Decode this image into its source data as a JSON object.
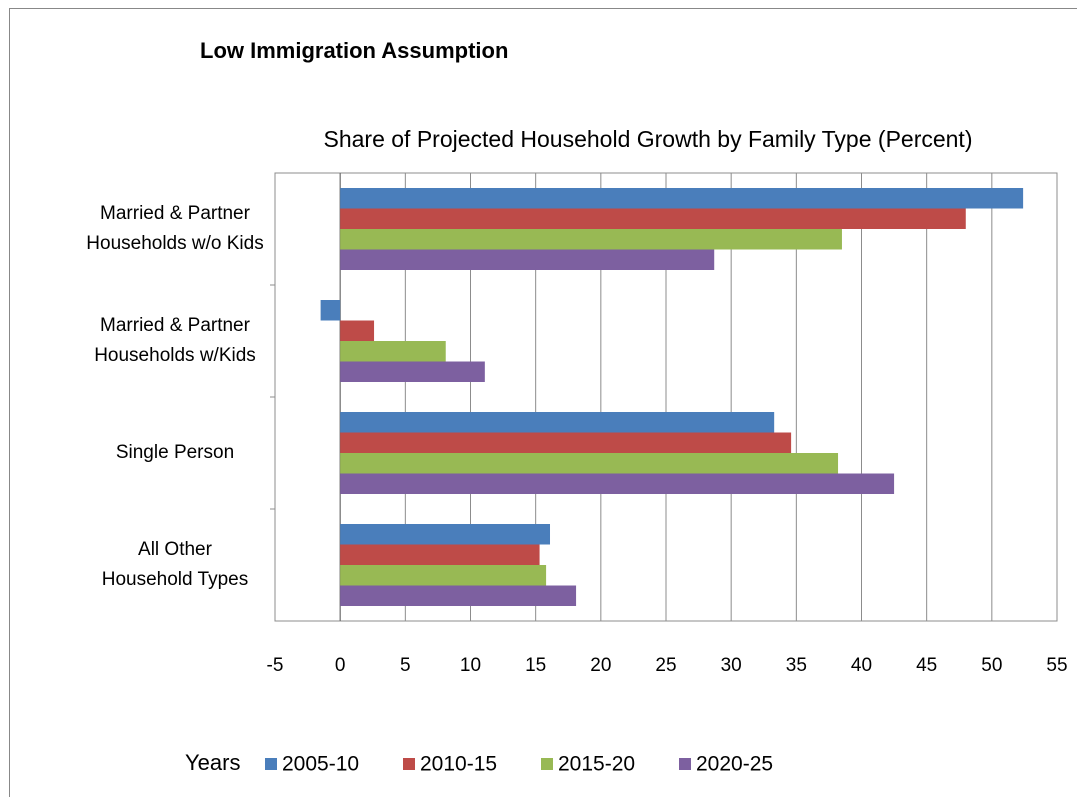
{
  "chart_data": {
    "type": "hbar",
    "title": "Low Immigration Assumption",
    "x_label": "Share of Projected Household Growth by Family Type (Percent)",
    "legend_title": "Years",
    "categories": [
      "Married & Partner\nHouseholds w/o Kids",
      "Married & Partner\nHouseholds w/Kids",
      "Single Person",
      "All Other\nHousehold Types"
    ],
    "series": [
      {
        "name": "2005-10",
        "color": "#4a7ebb",
        "values": [
          52.4,
          -1.5,
          33.3,
          16.1
        ]
      },
      {
        "name": "2010-15",
        "color": "#be4b48",
        "values": [
          48.0,
          2.6,
          34.6,
          15.3
        ]
      },
      {
        "name": "2015-20",
        "color": "#98b954",
        "values": [
          38.5,
          8.1,
          38.2,
          15.8
        ]
      },
      {
        "name": "2020-25",
        "color": "#7d60a0",
        "values": [
          28.7,
          11.1,
          42.5,
          18.1
        ]
      }
    ],
    "xlim": [
      -5,
      55
    ],
    "xticks": [
      -5,
      0,
      5,
      10,
      15,
      20,
      25,
      30,
      35,
      40,
      45,
      50,
      55
    ],
    "grid": true,
    "legend": "bottom"
  }
}
